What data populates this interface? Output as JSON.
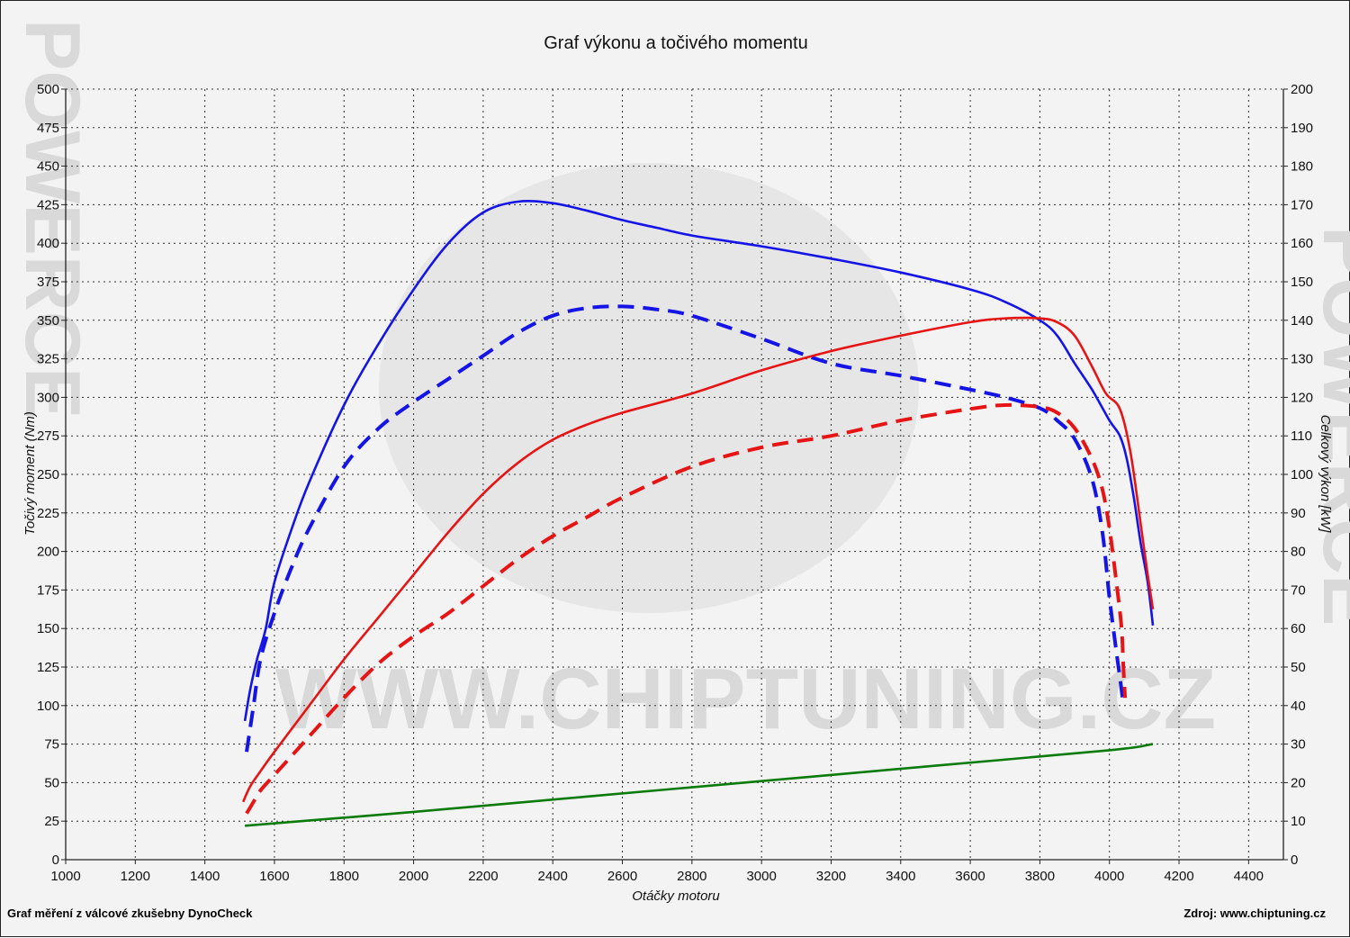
{
  "page": {
    "watermark_text": "WWW.CHIPTUNING.CZ",
    "side_watermark": "POWERCE",
    "footer_left": "Graf měření z válcové zkušebny DynoCheck",
    "footer_right": "Zdroj: www.chiptuning.cz"
  },
  "chart_data": {
    "type": "line",
    "title": "Graf výkonu a točivého momentu",
    "xlabel": "Otáčky motoru",
    "ylabel_left": "Točivý moment (Nm)",
    "ylabel_right": "Celkový výkon [kW]",
    "xlim": [
      1000,
      4500
    ],
    "ylim_left": [
      0,
      500
    ],
    "ylim_right": [
      0,
      200
    ],
    "x_ticks": [
      1000,
      1200,
      1400,
      1600,
      1800,
      2000,
      2200,
      2400,
      2600,
      2800,
      3000,
      3200,
      3400,
      3600,
      3800,
      4000,
      4200,
      4400
    ],
    "y_ticks_left": [
      0,
      25,
      50,
      75,
      100,
      125,
      150,
      175,
      200,
      225,
      250,
      275,
      300,
      325,
      350,
      375,
      400,
      425,
      450,
      475,
      500
    ],
    "y_ticks_right": [
      0,
      10,
      20,
      30,
      40,
      50,
      60,
      70,
      80,
      90,
      100,
      110,
      120,
      130,
      140,
      150,
      160,
      170,
      180,
      190,
      200
    ],
    "grid": true,
    "colors": {
      "torque": "#1414e6",
      "power": "#e61414",
      "loss": "#0a7a0a"
    },
    "series": [
      {
        "axis": "left",
        "color": "#1414e6",
        "dash": false,
        "x": [
          1515,
          1530,
          1550,
          1575,
          1600,
          1650,
          1700,
          1800,
          1900,
          2000,
          2100,
          2200,
          2300,
          2400,
          2500,
          2600,
          2700,
          2800,
          3000,
          3200,
          3400,
          3600,
          3700,
          3800,
          3850,
          3900,
          3950,
          4000,
          4030,
          4050,
          4070,
          4090,
          4110,
          4125
        ],
        "y": [
          90,
          110,
          130,
          150,
          180,
          215,
          245,
          295,
          335,
          370,
          400,
          420,
          427,
          426,
          421,
          415,
          410,
          405,
          398,
          390,
          381,
          370,
          362,
          350,
          340,
          322,
          305,
          285,
          275,
          260,
          235,
          205,
          180,
          152
        ]
      },
      {
        "axis": "left",
        "color": "#1414e6",
        "dash": true,
        "x": [
          1520,
          1540,
          1560,
          1600,
          1650,
          1700,
          1800,
          1900,
          2000,
          2100,
          2200,
          2300,
          2400,
          2500,
          2600,
          2700,
          2800,
          3000,
          3200,
          3400,
          3600,
          3700,
          3800,
          3850,
          3900,
          3950,
          3980,
          4000,
          4020,
          4035,
          4040
        ],
        "y": [
          70,
          100,
          130,
          160,
          190,
          215,
          255,
          280,
          297,
          312,
          327,
          342,
          353,
          358,
          359,
          357,
          353,
          338,
          322,
          314,
          305,
          300,
          293,
          285,
          273,
          247,
          212,
          170,
          135,
          110,
          100
        ]
      },
      {
        "axis": "right",
        "color": "#e61414",
        "dash": false,
        "x": [
          1510,
          1530,
          1560,
          1600,
          1700,
          1800,
          1900,
          2000,
          2100,
          2200,
          2300,
          2400,
          2500,
          2600,
          2800,
          3000,
          3200,
          3400,
          3600,
          3700,
          3800,
          3850,
          3900,
          3950,
          3990,
          4030,
          4060,
          4090,
          4110,
          4120,
          4125
        ],
        "y": [
          15,
          19,
          23,
          28,
          40,
          52,
          63,
          74,
          85,
          95,
          103,
          109,
          113,
          116,
          121,
          127,
          132,
          136,
          139.5,
          140.5,
          140.5,
          139.5,
          136,
          128,
          121,
          117,
          106,
          87,
          74,
          68,
          65
        ]
      },
      {
        "axis": "right",
        "color": "#e61414",
        "dash": true,
        "x": [
          1520,
          1540,
          1560,
          1600,
          1700,
          1800,
          1900,
          2000,
          2100,
          2200,
          2300,
          2400,
          2500,
          2600,
          2800,
          3000,
          3200,
          3400,
          3600,
          3700,
          3800,
          3850,
          3900,
          3950,
          3980,
          4000,
          4020,
          4035,
          4040,
          4045
        ],
        "y": [
          12,
          15,
          18,
          22,
          32,
          42,
          51,
          58,
          64,
          71,
          78,
          84,
          89,
          94,
          102,
          107,
          110,
          114,
          117,
          118,
          117.5,
          116,
          112,
          104,
          96,
          86,
          72,
          60,
          50,
          42
        ]
      },
      {
        "axis": "left",
        "color": "#0a7a0a",
        "dash": false,
        "x": [
          1515,
          2000,
          2500,
          3000,
          3500,
          4000,
          4125
        ],
        "y": [
          22,
          31,
          41,
          51,
          61,
          71,
          75
        ]
      }
    ]
  }
}
